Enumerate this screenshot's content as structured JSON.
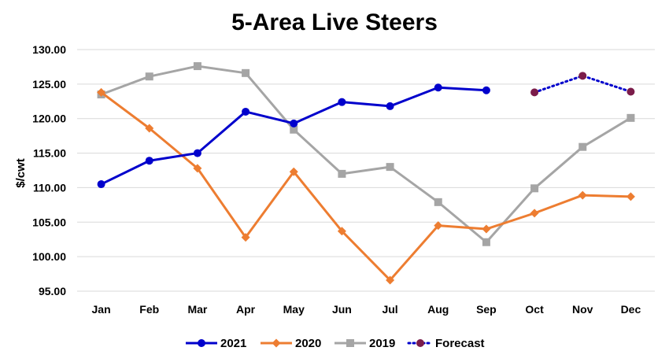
{
  "chart_data": {
    "type": "line",
    "title": "5-Area Live Steers",
    "xlabel": "",
    "ylabel": "$/cwt",
    "categories": [
      "Jan",
      "Feb",
      "Mar",
      "Apr",
      "May",
      "Jun",
      "Jul",
      "Aug",
      "Sep",
      "Oct",
      "Nov",
      "Dec"
    ],
    "ylim": [
      95,
      130
    ],
    "yticks": [
      95,
      100,
      105,
      110,
      115,
      120,
      125,
      130
    ],
    "ytick_labels": [
      "95.00",
      "100.00",
      "105.00",
      "110.00",
      "115.00",
      "120.00",
      "125.00",
      "130.00"
    ],
    "grid": true,
    "legend_position": "bottom",
    "series": [
      {
        "name": "2021",
        "color": "#0000CC",
        "marker": "circle",
        "style": "solid",
        "values": [
          110.5,
          113.9,
          115.0,
          121.0,
          119.3,
          122.4,
          121.8,
          124.5,
          124.1,
          null,
          null,
          null
        ]
      },
      {
        "name": "2020",
        "color": "#ED7D31",
        "marker": "diamond",
        "style": "solid",
        "values": [
          123.8,
          118.6,
          112.8,
          102.8,
          112.3,
          103.7,
          96.6,
          104.5,
          104.0,
          106.3,
          108.9,
          108.7
        ]
      },
      {
        "name": "2019",
        "color": "#A5A5A5",
        "marker": "square",
        "style": "solid",
        "values": [
          123.5,
          126.1,
          127.6,
          126.6,
          118.4,
          112.0,
          113.0,
          107.9,
          102.1,
          109.9,
          115.9,
          120.1
        ]
      },
      {
        "name": "Forecast",
        "color": "#0000CC",
        "marker_color": "#7B1C4A",
        "marker": "circle",
        "style": "dotted",
        "values": [
          null,
          null,
          null,
          null,
          null,
          null,
          null,
          null,
          null,
          123.8,
          126.2,
          123.9
        ]
      }
    ]
  }
}
